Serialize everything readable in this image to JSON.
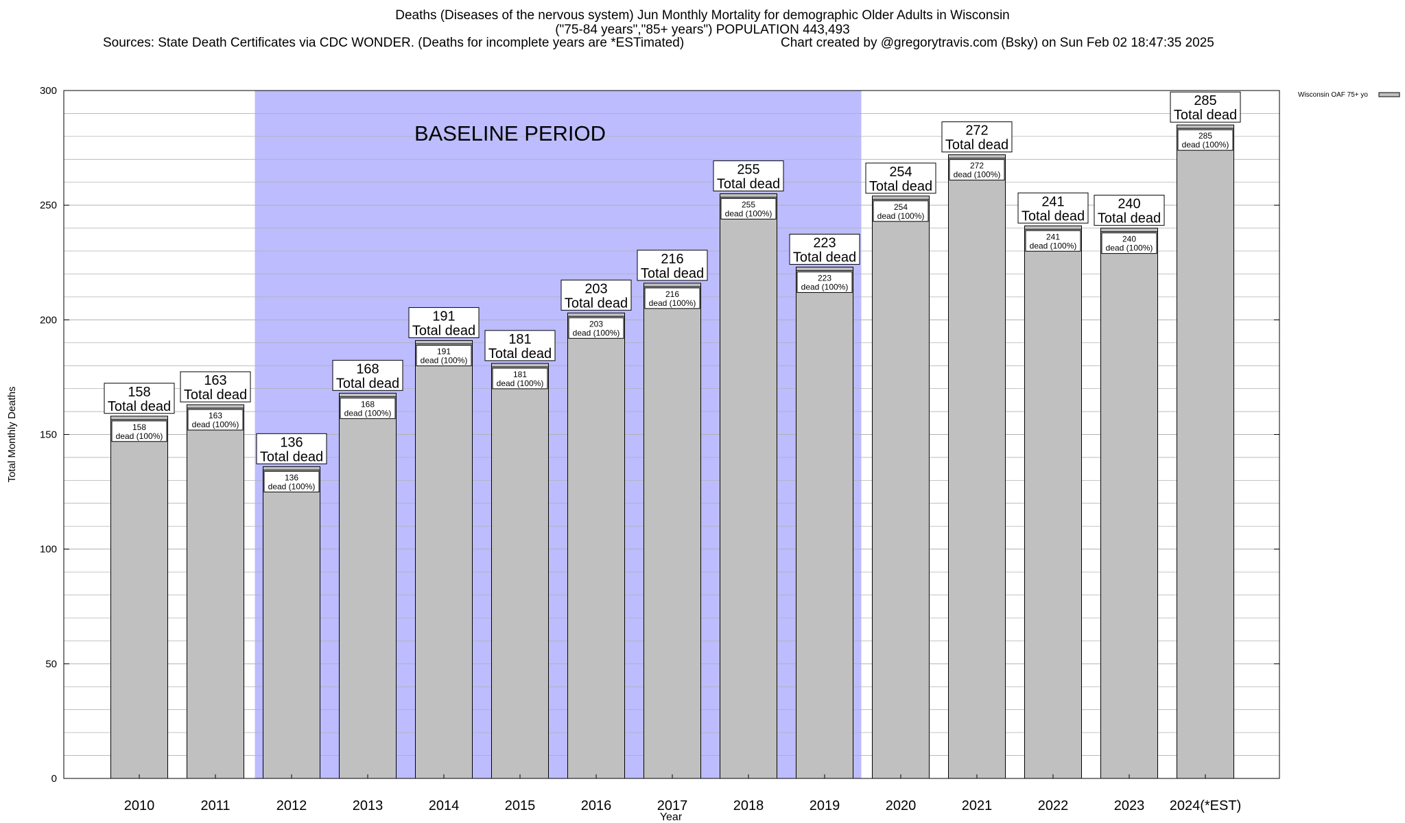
{
  "title": {
    "line1": "Deaths (Diseases of the nervous system) Jun Monthly Mortality for demographic Older Adults in Wisconsin",
    "line2": "(\"75-84 years\",\"85+ years\") POPULATION 443,493",
    "sources": "Sources: State Death Certificates via CDC WONDER. (Deaths for incomplete years are *ESTimated)",
    "credit": "Chart created by @gregorytravis.com (Bsky) on Sun Feb 02 18:47:35 2025"
  },
  "colors": {
    "bar_fill": "#c0c0c0",
    "baseline_fill": "#bcbcff",
    "grid": "#b0b0b0"
  },
  "chart_data": {
    "type": "bar",
    "xlabel": "Year",
    "ylabel": "Total Monthly Deaths",
    "ylim": [
      0,
      300
    ],
    "yticks": [
      0,
      50,
      100,
      150,
      200,
      250,
      300
    ],
    "grid": true,
    "legend_position": "top-right",
    "categories": [
      "2010",
      "2011",
      "2012",
      "2013",
      "2014",
      "2015",
      "2016",
      "2017",
      "2018",
      "2019",
      "2020",
      "2021",
      "2022",
      "2023",
      "2024(*EST)"
    ],
    "series": [
      {
        "name": "Wisconsin OAF 75+ yo",
        "values": [
          158,
          163,
          136,
          168,
          191,
          181,
          203,
          216,
          255,
          223,
          254,
          272,
          241,
          240,
          285
        ]
      }
    ],
    "total_label": "Total dead",
    "inner_label": "dead (100%)",
    "baseline": {
      "label": "BASELINE PERIOD",
      "start": "2012",
      "end": "2019"
    }
  }
}
